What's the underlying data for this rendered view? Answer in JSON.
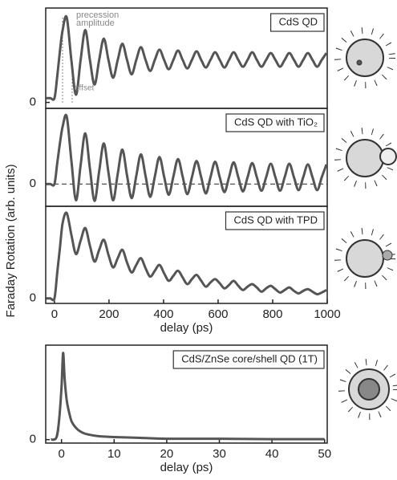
{
  "chart_data": [
    {
      "type": "line",
      "title": "CdS QD",
      "annotations": [
        "precession",
        "amplitude",
        "offset"
      ],
      "x": [
        -30,
        -15,
        0,
        10,
        20,
        30,
        45,
        62,
        79,
        96,
        113,
        130,
        147,
        164,
        181,
        198,
        215,
        232,
        249,
        266,
        283,
        300,
        317,
        334,
        351,
        368,
        385,
        402,
        419,
        436,
        453,
        470,
        487,
        504,
        521,
        538,
        555,
        572,
        589,
        606,
        623,
        640,
        657,
        674,
        691,
        708,
        725,
        742,
        759,
        776,
        793,
        810,
        827,
        844,
        861,
        878,
        895,
        912,
        929,
        946,
        963,
        980,
        997
      ],
      "values": [
        0.05,
        0.05,
        0.05,
        0.3,
        0.6,
        0.85,
        1.0,
        0.5,
        0.09,
        0.5,
        0.85,
        0.5,
        0.21,
        0.5,
        0.75,
        0.5,
        0.29,
        0.5,
        0.69,
        0.5,
        0.33,
        0.5,
        0.65,
        0.5,
        0.37,
        0.5,
        0.62,
        0.5,
        0.39,
        0.5,
        0.61,
        0.5,
        0.4,
        0.5,
        0.6,
        0.5,
        0.41,
        0.5,
        0.59,
        0.5,
        0.41,
        0.5,
        0.59,
        0.5,
        0.42,
        0.5,
        0.59,
        0.5,
        0.42,
        0.5,
        0.58,
        0.5,
        0.42,
        0.5,
        0.58,
        0.5,
        0.42,
        0.5,
        0.58,
        0.5,
        0.42,
        0.5,
        0.58
      ],
      "color": "#555555",
      "xlim": [
        -32,
        1000
      ],
      "ylim": [
        -0.07,
        1.11
      ],
      "yticks": [
        0
      ]
    },
    {
      "type": "line",
      "title": "CdS QD with TiO₂",
      "ylabel": "Faraday Rotation (arb. units)",
      "x": [
        -30,
        -15,
        0,
        10,
        20,
        30,
        45,
        62,
        79,
        96,
        113,
        130,
        147,
        164,
        181,
        198,
        215,
        232,
        249,
        266,
        283,
        300,
        317,
        334,
        351,
        368,
        385,
        402,
        419,
        436,
        453,
        470,
        487,
        504,
        521,
        538,
        555,
        572,
        589,
        606,
        623,
        640,
        657,
        674,
        691,
        708,
        725,
        742,
        759,
        776,
        793,
        810,
        827,
        844,
        861,
        878,
        895,
        912,
        929,
        946,
        963,
        980,
        997
      ],
      "values": [
        0,
        0,
        0,
        0.3,
        0.6,
        0.85,
        1.0,
        0.35,
        -0.24,
        0.28,
        0.75,
        0.23,
        -0.25,
        0.19,
        0.6,
        0.17,
        -0.24,
        0.15,
        0.51,
        0.13,
        -0.21,
        0.12,
        0.44,
        0.12,
        -0.19,
        0.11,
        0.4,
        0.11,
        -0.16,
        0.11,
        0.37,
        0.11,
        -0.15,
        0.1,
        0.34,
        0.1,
        -0.14,
        0.1,
        0.33,
        0.1,
        -0.12,
        0.1,
        0.32,
        0.1,
        -0.11,
        0.1,
        0.31,
        0.1,
        -0.1,
        0.1,
        0.3,
        0.1,
        -0.1,
        0.1,
        0.3,
        0.1,
        -0.09,
        0.1,
        0.29,
        0.1,
        -0.09,
        0.1,
        0.29
      ],
      "color": "#555555",
      "xlim": [
        -32,
        1000
      ],
      "ylim": [
        -0.33,
        1.12
      ],
      "yticks": [
        0
      ],
      "grid": "dashed"
    },
    {
      "type": "line",
      "title": "CdS QD with TPD",
      "xlabel": "delay (ps)",
      "x": [
        -30,
        -15,
        0,
        10,
        20,
        30,
        45,
        62,
        79,
        96,
        113,
        130,
        147,
        164,
        181,
        198,
        215,
        232,
        249,
        266,
        283,
        300,
        317,
        334,
        351,
        368,
        385,
        402,
        419,
        436,
        453,
        470,
        487,
        504,
        521,
        538,
        555,
        572,
        589,
        606,
        623,
        640,
        657,
        674,
        691,
        708,
        725,
        742,
        759,
        776,
        793,
        810,
        827,
        844,
        861,
        878,
        895,
        912,
        929,
        946,
        963,
        980,
        997
      ],
      "values": [
        0,
        0,
        0,
        0.3,
        0.6,
        0.9,
        1.02,
        0.76,
        0.53,
        0.69,
        0.84,
        0.63,
        0.44,
        0.58,
        0.7,
        0.52,
        0.37,
        0.48,
        0.58,
        0.43,
        0.31,
        0.4,
        0.48,
        0.36,
        0.26,
        0.33,
        0.4,
        0.3,
        0.21,
        0.27,
        0.33,
        0.25,
        0.17,
        0.23,
        0.28,
        0.21,
        0.14,
        0.19,
        0.23,
        0.18,
        0.12,
        0.16,
        0.21,
        0.15,
        0.1,
        0.14,
        0.17,
        0.13,
        0.08,
        0.12,
        0.15,
        0.11,
        0.07,
        0.1,
        0.13,
        0.09,
        0.06,
        0.09,
        0.11,
        0.08,
        0.05,
        0.07,
        0.1
      ],
      "color": "#555555",
      "xlim": [
        -32,
        1000
      ],
      "ylim": [
        -0.06,
        1.1
      ],
      "yticks": [
        0
      ],
      "xticks": [
        0,
        200,
        400,
        600,
        800,
        1000
      ]
    },
    {
      "type": "line",
      "title": "CdS/ZnSe core/shell QD (1T)",
      "xlabel": "delay (ps)",
      "x": [
        -2,
        -1,
        -0.5,
        0,
        0.3,
        0.6,
        1,
        1.5,
        2,
        3,
        4,
        5,
        7,
        10,
        15,
        20,
        30,
        40,
        50
      ],
      "values": [
        0,
        0.02,
        0.2,
        0.6,
        1.0,
        0.7,
        0.45,
        0.3,
        0.2,
        0.12,
        0.08,
        0.06,
        0.04,
        0.03,
        0.02,
        0.01,
        0.01,
        0.005,
        0.005
      ],
      "color": "#555555",
      "xlim": [
        -3,
        50.5
      ],
      "ylim": [
        -0.04,
        1.09
      ],
      "yticks": [
        0
      ],
      "xticks": [
        0,
        10,
        20,
        30,
        40,
        50
      ]
    }
  ]
}
